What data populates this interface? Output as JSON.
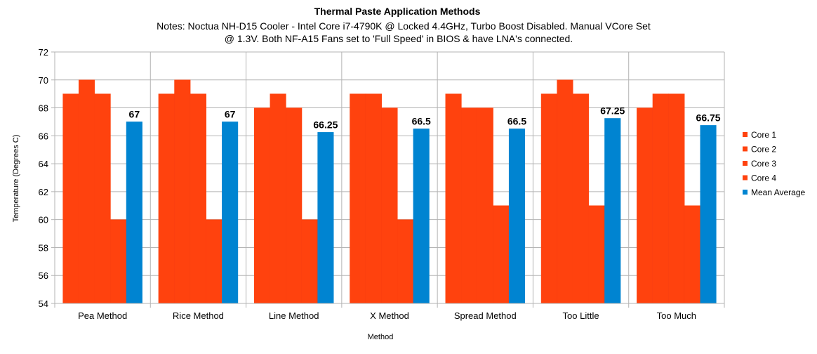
{
  "chart_data": {
    "type": "bar",
    "title": "Thermal Paste Application Methods",
    "subtitle_lines": [
      "Notes: Noctua NH-D15 Cooler - Intel Core i7-4790K @ Locked 4.4GHz, Turbo Boost Disabled. Manual VCore Set",
      "@ 1.3V. Both NF-A15 Fans set to 'Full Speed' in BIOS & have LNA's connected."
    ],
    "xlabel": "Method",
    "ylabel": "Temperature (Degrees C)",
    "ylim": [
      54,
      72
    ],
    "ytick_step": 2,
    "grid": true,
    "legend_position": "right",
    "categories": [
      "Pea Method",
      "Rice Method",
      "Line Method",
      "X Method",
      "Spread Method",
      "Too Little",
      "Too Much"
    ],
    "series": [
      {
        "name": "Core 1",
        "color": "#FF420E",
        "values": [
          69,
          69,
          68,
          69,
          69,
          69,
          68
        ]
      },
      {
        "name": "Core 2",
        "color": "#FF420E",
        "values": [
          70,
          70,
          69,
          69,
          68,
          70,
          69
        ]
      },
      {
        "name": "Core 3",
        "color": "#FF420E",
        "values": [
          69,
          69,
          68,
          68,
          68,
          69,
          69
        ]
      },
      {
        "name": "Core 4",
        "color": "#FF420E",
        "values": [
          60,
          60,
          60,
          60,
          61,
          61,
          61
        ]
      },
      {
        "name": "Mean Average",
        "color": "#0084D1",
        "values": [
          67,
          67,
          66.25,
          66.5,
          66.5,
          67.25,
          66.75
        ]
      }
    ],
    "data_labels": {
      "series": "Mean Average",
      "values": [
        "67",
        "67",
        "66.25",
        "66.5",
        "66.5",
        "67.25",
        "66.75"
      ]
    }
  }
}
